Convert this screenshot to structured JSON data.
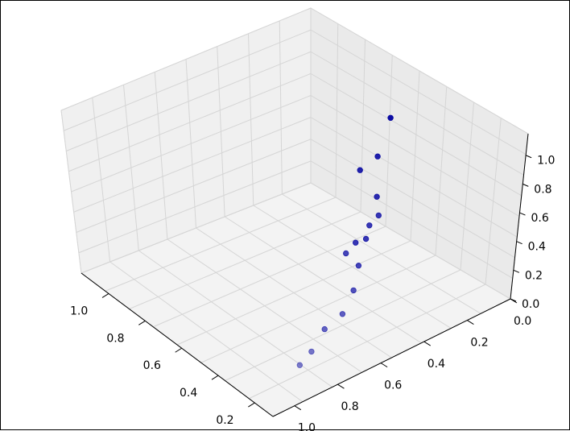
{
  "chart_data": {
    "type": "scatter",
    "projection": "3d",
    "title": "",
    "xlabel": "",
    "ylabel": "",
    "zlabel": "",
    "grid": true,
    "x_ticks": [
      "0.2",
      "0.4",
      "0.6",
      "0.8",
      "1.0"
    ],
    "y_ticks": [
      "0.0",
      "0.2",
      "0.4",
      "0.6",
      "0.8",
      "1.0"
    ],
    "z_ticks": [
      "0.0",
      "0.2",
      "0.4",
      "0.6",
      "0.8",
      "1.0"
    ],
    "xlim": [
      0.1,
      1.15
    ],
    "ylim": [
      0.0,
      1.1
    ],
    "zlim": [
      0.0,
      1.15
    ],
    "marker_color": "#0000a0",
    "points": [
      {
        "x": 0.62,
        "y": 0.18,
        "z": 0.9
      },
      {
        "x": 0.55,
        "y": 0.29,
        "z": 0.78
      },
      {
        "x": 0.57,
        "y": 0.35,
        "z": 0.71
      },
      {
        "x": 0.47,
        "y": 0.35,
        "z": 0.62
      },
      {
        "x": 0.42,
        "y": 0.38,
        "z": 0.56
      },
      {
        "x": 0.42,
        "y": 0.42,
        "z": 0.52
      },
      {
        "x": 0.44,
        "y": 0.41,
        "z": 0.4
      },
      {
        "x": 0.47,
        "y": 0.43,
        "z": 0.36
      },
      {
        "x": 0.42,
        "y": 0.52,
        "z": 0.4
      },
      {
        "x": 0.38,
        "y": 0.49,
        "z": 0.33
      },
      {
        "x": 0.33,
        "y": 0.55,
        "z": 0.25
      },
      {
        "x": 0.28,
        "y": 0.64,
        "z": 0.2
      },
      {
        "x": 0.3,
        "y": 0.7,
        "z": 0.12
      },
      {
        "x": 0.23,
        "y": 0.82,
        "z": 0.12
      },
      {
        "x": 0.22,
        "y": 0.88,
        "z": 0.08
      }
    ]
  }
}
